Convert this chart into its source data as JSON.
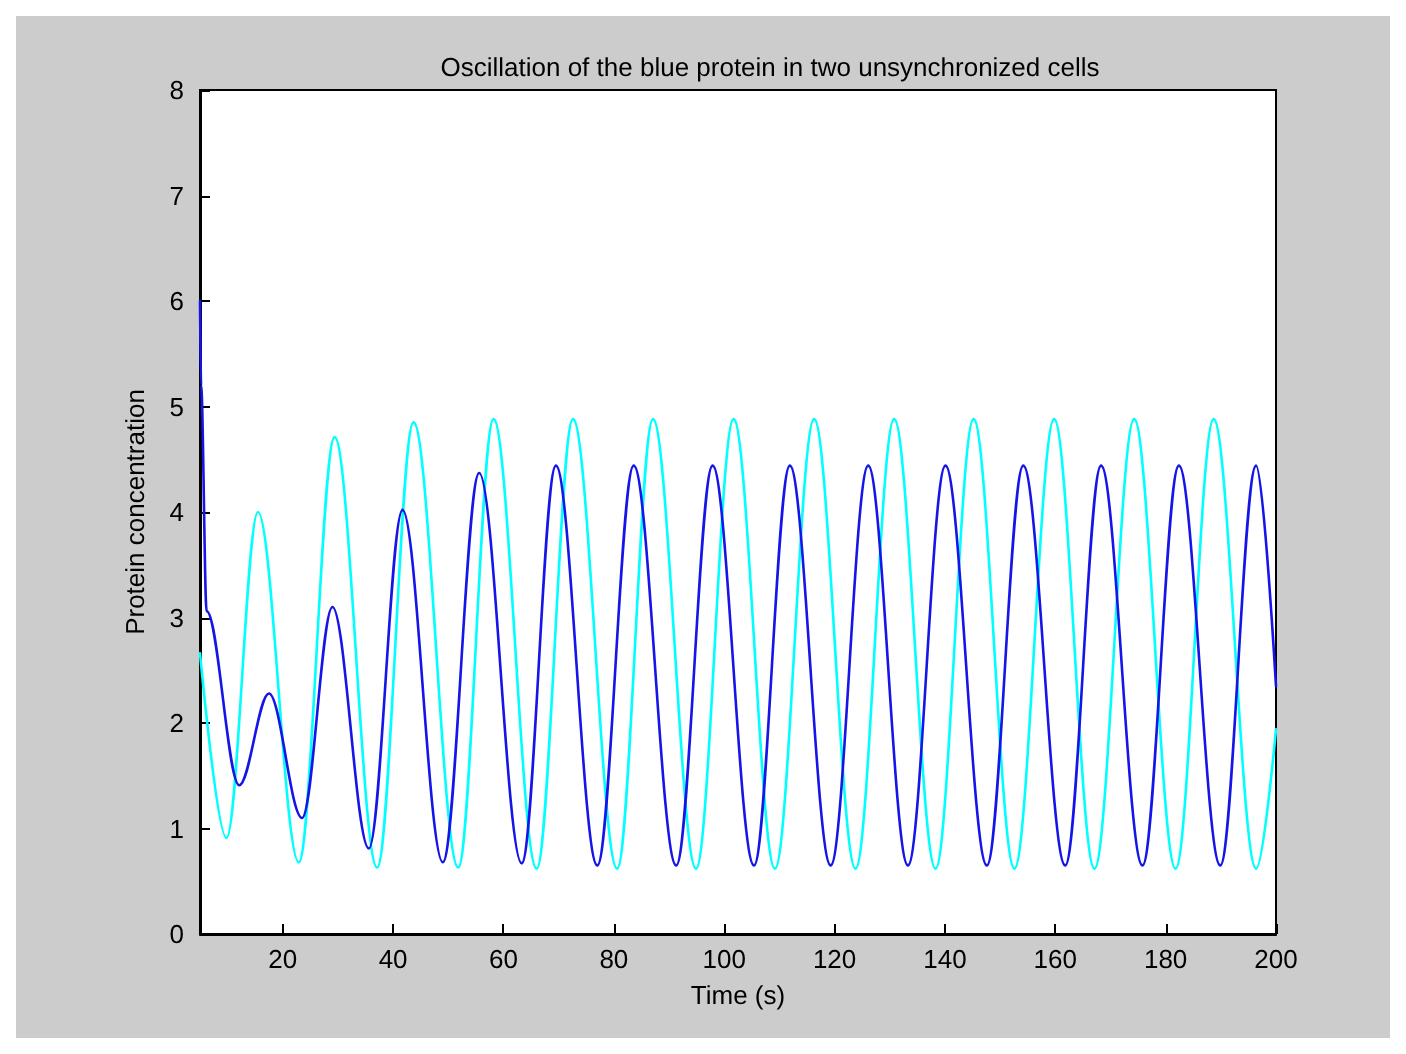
{
  "chart_data": {
    "type": "line",
    "title": "Oscillation of the blue protein in two unsynchronized cells",
    "xlabel": "Time (s)",
    "ylabel": "Protein concentration",
    "xlim": [
      5,
      200
    ],
    "ylim": [
      0,
      8
    ],
    "xticks": [
      20,
      40,
      60,
      80,
      100,
      120,
      140,
      160,
      180,
      200
    ],
    "yticks": [
      0,
      1,
      2,
      3,
      4,
      5,
      6,
      7,
      8
    ],
    "grid": false,
    "marker": "none",
    "line_style": "solid",
    "series": [
      {
        "color": "#00ffff",
        "x": [
          5,
          9.8,
          15.5,
          22.9,
          29.4,
          37.1,
          43.7,
          51.8,
          58.2,
          66.0,
          72.6,
          80.6,
          87.1,
          94.9,
          101.7,
          109.2,
          116.3,
          123.8,
          130.8,
          138.3,
          145.2,
          152.6,
          159.8,
          167.1,
          174.3,
          181.8,
          188.7,
          196.4,
          200
        ],
        "values": [
          2.66,
          0.91,
          4.0,
          0.68,
          4.71,
          0.63,
          4.85,
          0.63,
          4.88,
          0.62,
          4.88,
          0.62,
          4.88,
          0.62,
          4.88,
          0.62,
          4.88,
          0.62,
          4.88,
          0.62,
          4.88,
          0.62,
          4.88,
          0.62,
          4.88,
          0.62,
          4.88,
          0.62,
          1.94
        ]
      },
      {
        "color": "#1515e8",
        "x": [
          5,
          5.2,
          6.2,
          12.1,
          17.5,
          23.5,
          29.0,
          35.6,
          41.7,
          49.0,
          55.6,
          63.3,
          69.5,
          77.0,
          83.6,
          91.3,
          97.9,
          105.4,
          111.9,
          119.3,
          126.1,
          133.3,
          140.1,
          147.6,
          154.2,
          161.8,
          168.3,
          175.8,
          182.4,
          189.9,
          196.4,
          200
        ],
        "values": [
          6.0,
          5.2,
          3.06,
          1.41,
          2.28,
          1.1,
          3.1,
          0.81,
          4.02,
          0.68,
          4.37,
          0.67,
          4.44,
          0.65,
          4.44,
          0.65,
          4.44,
          0.65,
          4.44,
          0.65,
          4.44,
          0.65,
          4.44,
          0.65,
          4.44,
          0.65,
          4.44,
          0.65,
          4.44,
          0.65,
          4.44,
          2.35
        ]
      }
    ]
  }
}
